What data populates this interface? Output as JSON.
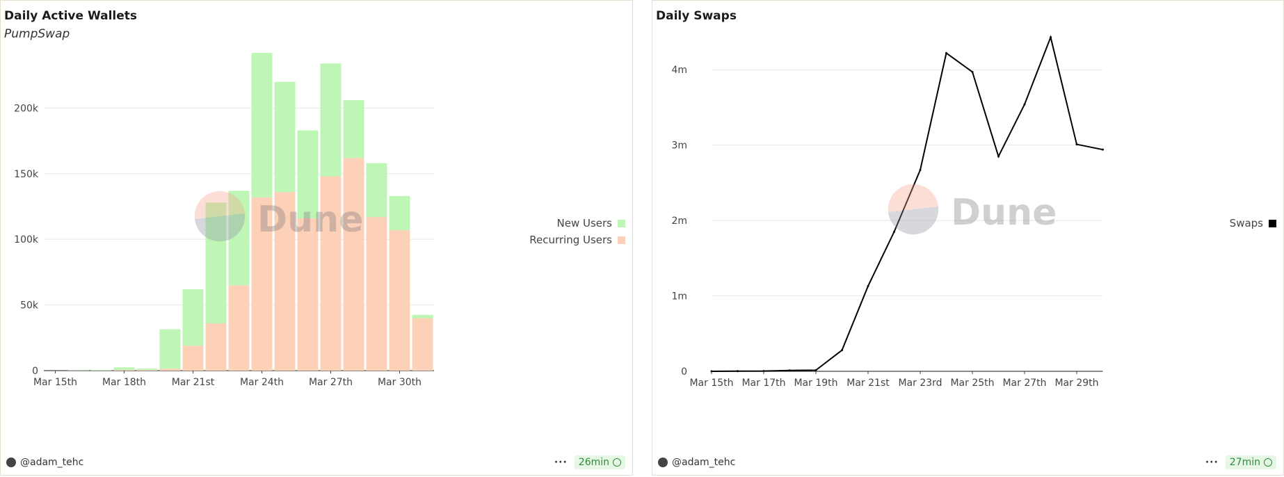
{
  "left_panel": {
    "title": "Daily Active Wallets",
    "subtitle": "PumpSwap",
    "author": "@adam_tehc",
    "age": "26min",
    "watermark": "Dune"
  },
  "right_panel": {
    "title": "Daily Swaps",
    "author": "@adam_tehc",
    "age": "27min",
    "watermark": "Dune"
  },
  "chart_data": [
    {
      "type": "bar",
      "stacked": true,
      "title": "Daily Active Wallets",
      "subtitle": "PumpSwap",
      "categories": [
        "Mar 15th",
        "Mar 16th",
        "Mar 17th",
        "Mar 18th",
        "Mar 19th",
        "Mar 20th",
        "Mar 21st",
        "Mar 22nd",
        "Mar 23rd",
        "Mar 24th",
        "Mar 25th",
        "Mar 26th",
        "Mar 27th",
        "Mar 28th",
        "Mar 29th",
        "Mar 30th",
        "Mar 31st"
      ],
      "tick_labels": [
        "Mar 15th",
        "Mar 18th",
        "Mar 21st",
        "Mar 24th",
        "Mar 27th",
        "Mar 30th"
      ],
      "series": [
        {
          "name": "Recurring Users",
          "color": "#fdd0b8",
          "values": [
            0,
            0,
            0,
            500,
            500,
            1500,
            19000,
            36000,
            65000,
            132000,
            136000,
            116000,
            148000,
            162000,
            117000,
            107000,
            40000
          ]
        },
        {
          "name": "New Users",
          "color": "#bef7b5",
          "values": [
            0,
            200,
            300,
            2000,
            1000,
            30000,
            43000,
            92000,
            72000,
            110000,
            84000,
            67000,
            86000,
            44000,
            41000,
            26000,
            2500
          ]
        }
      ],
      "yticks": [
        "0",
        "50k",
        "100k",
        "150k",
        "200k"
      ],
      "ylim": [
        0,
        250000
      ],
      "legend_position": "right"
    },
    {
      "type": "line",
      "title": "Daily Swaps",
      "x": [
        "Mar 15th",
        "Mar 16th",
        "Mar 17th",
        "Mar 18th",
        "Mar 19th",
        "Mar 20th",
        "Mar 21st",
        "Mar 22nd",
        "Mar 23rd",
        "Mar 24th",
        "Mar 25th",
        "Mar 26th",
        "Mar 27th",
        "Mar 28th",
        "Mar 29th",
        "Mar 30th"
      ],
      "tick_labels": [
        "Mar 15th",
        "Mar 17th",
        "Mar 19th",
        "Mar 21st",
        "Mar 23rd",
        "Mar 25th",
        "Mar 27th",
        "Mar 29th"
      ],
      "series": [
        {
          "name": "Swaps",
          "color": "#000000",
          "values": [
            0,
            2000,
            3000,
            12000,
            15000,
            280000,
            1130000,
            1850000,
            2670000,
            4220000,
            3970000,
            2850000,
            3540000,
            4430000,
            3010000,
            2940000
          ]
        }
      ],
      "yticks": [
        "0",
        "1m",
        "2m",
        "3m",
        "4m"
      ],
      "ylim": [
        0,
        4500000
      ],
      "legend_position": "right"
    }
  ]
}
